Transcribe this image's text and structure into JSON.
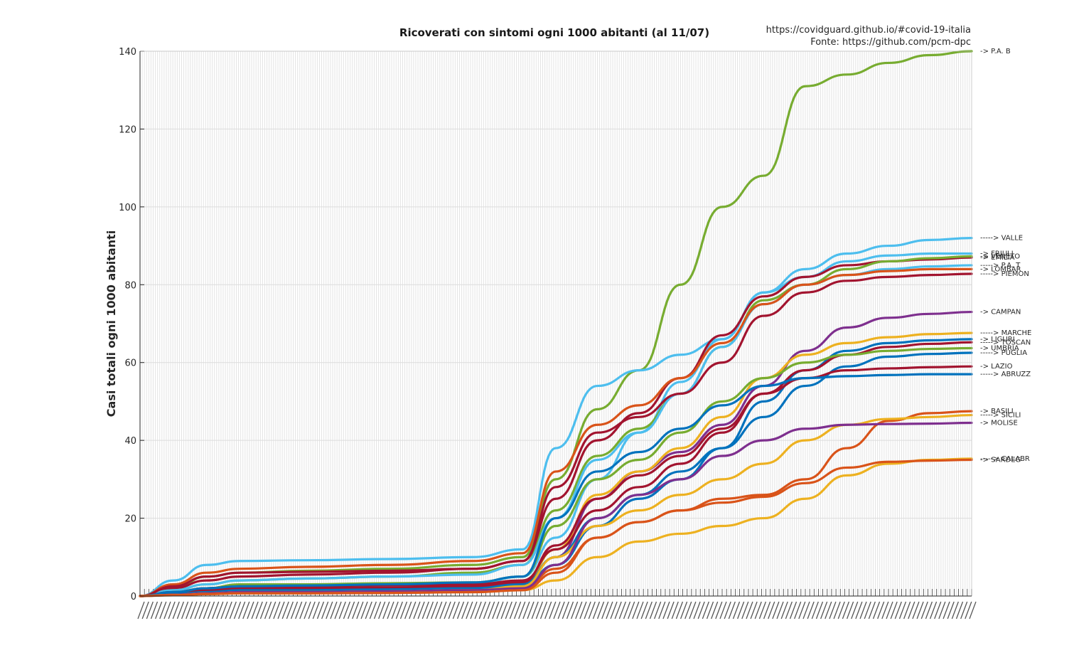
{
  "chart_data": {
    "type": "line",
    "title": "Ricoverati con sintomi ogni 1000 abitanti (al 11/07)",
    "source_line_1": "https://covidguard.github.io/#covid-19-italia",
    "source_line_2": "Fonte: https://github.com/pcm-dpc",
    "ylabel": "Casi totali ogni 1000 abitanti",
    "ylim": [
      0,
      140
    ],
    "yticks": [
      0,
      20,
      40,
      60,
      80,
      100,
      120,
      140
    ],
    "grid": "on",
    "x_tick_labels": "dense, illegible (daily dates)",
    "x": [
      0,
      0.04,
      0.08,
      0.12,
      0.2,
      0.3,
      0.4,
      0.46,
      0.5,
      0.55,
      0.6,
      0.65,
      0.7,
      0.75,
      0.8,
      0.85,
      0.9,
      0.95,
      1.0
    ],
    "series": [
      {
        "label": "-> P.A. B",
        "color": "#77ac30",
        "values": [
          0,
          2,
          5,
          6,
          6.5,
          7,
          8,
          10,
          30,
          48,
          58,
          80,
          100,
          108,
          131,
          134,
          137,
          139,
          140
        ]
      },
      {
        "label": "-----> VALLE",
        "color": "#4dbeee",
        "values": [
          0,
          4,
          8,
          9,
          9.2,
          9.5,
          10,
          12,
          38,
          54,
          58,
          62,
          66,
          78,
          84,
          88,
          90,
          91.5,
          92
        ]
      },
      {
        "label": "-> FRIULI",
        "color": "#4dbeee",
        "values": [
          0,
          1,
          2,
          2,
          2,
          2.5,
          3,
          5,
          15,
          30,
          42,
          55,
          66,
          78,
          82,
          86,
          87.5,
          88,
          88
        ]
      },
      {
        "label": "-> EMILIA",
        "color": "#a2142f",
        "values": [
          0,
          2,
          4,
          5,
          5.5,
          6,
          7,
          9,
          25,
          40,
          47,
          56,
          67,
          77,
          82,
          85,
          86,
          86.5,
          87
        ]
      },
      {
        "label": "-> VENETO",
        "color": "#77ac30",
        "values": [
          0,
          1.5,
          3,
          4,
          4.5,
          5,
          6,
          8,
          22,
          36,
          43,
          52,
          64,
          76,
          80,
          84,
          86,
          86.8,
          87.3
        ]
      },
      {
        "label": "-----> P.A. T",
        "color": "#4dbeee",
        "values": [
          0,
          1.5,
          3,
          4,
          4.5,
          5,
          5.5,
          8,
          20,
          35,
          42,
          52,
          64,
          75,
          80,
          82.5,
          84,
          84.7,
          85
        ]
      },
      {
        "label": "-> LOMBAR",
        "color": "#d95319",
        "values": [
          0,
          3,
          6,
          7,
          7.5,
          8,
          9,
          11,
          32,
          44,
          49,
          56,
          65,
          75,
          80,
          82.5,
          83.5,
          84,
          84
        ]
      },
      {
        "label": "-----> PIEMON",
        "color": "#a2142f",
        "values": [
          0,
          2.5,
          5,
          6,
          6.2,
          6.5,
          7,
          9,
          28,
          42,
          46,
          52,
          60,
          72,
          78,
          81,
          82,
          82.5,
          82.8
        ]
      },
      {
        "label": "-> CAMPAN",
        "color": "#7e2f8e",
        "values": [
          0,
          0.5,
          1,
          1.5,
          1.5,
          1.7,
          2,
          3,
          10,
          25,
          32,
          37,
          44,
          54,
          63,
          69,
          71.5,
          72.5,
          73
        ]
      },
      {
        "label": "-----> MARCHE",
        "color": "#edb120",
        "values": [
          0,
          0.5,
          1,
          1.5,
          1.5,
          1.7,
          2,
          3,
          12,
          26,
          32,
          38,
          46,
          56,
          62,
          65,
          66.5,
          67.3,
          67.6
        ]
      },
      {
        "label": "-> LIGURI",
        "color": "#0072bd",
        "values": [
          0,
          0.5,
          1,
          1.5,
          1.5,
          1.7,
          2,
          3,
          8,
          18,
          25,
          30,
          38,
          50,
          58,
          63,
          65,
          65.7,
          66
        ]
      },
      {
        "label": "-----> TOSCAN",
        "color": "#a2142f",
        "values": [
          0,
          0.7,
          1.5,
          2,
          2,
          2.2,
          2.5,
          3.5,
          13,
          25,
          31,
          36,
          43,
          52,
          58,
          62,
          64,
          64.8,
          65.2
        ]
      },
      {
        "label": "-> UMBRIA",
        "color": "#77ac30",
        "values": [
          0,
          1,
          2,
          3,
          3,
          3.3,
          3.5,
          5,
          18,
          30,
          35,
          42,
          50,
          56,
          60,
          62,
          63,
          63.5,
          63.7
        ]
      },
      {
        "label": "-----> PUGLIA",
        "color": "#0072bd",
        "values": [
          0,
          0.5,
          1,
          1.5,
          1.5,
          1.7,
          2,
          3,
          10,
          20,
          26,
          32,
          38,
          46,
          54,
          59,
          61.5,
          62.2,
          62.5
        ]
      },
      {
        "label": "-> LAZIO",
        "color": "#a2142f",
        "values": [
          0,
          1,
          2,
          2.5,
          2.5,
          2.8,
          3,
          4,
          12,
          22,
          28,
          34,
          42,
          52,
          56,
          58,
          58.5,
          58.8,
          59
        ]
      },
      {
        "label": "-----> ABRUZZ",
        "color": "#0072bd",
        "values": [
          0,
          1,
          2,
          2.5,
          2.7,
          3,
          3.5,
          5,
          20,
          32,
          37,
          43,
          49,
          54,
          56,
          56.5,
          56.8,
          57,
          57
        ]
      },
      {
        "label": "-> BASILI",
        "color": "#d95319",
        "values": [
          0,
          0.3,
          0.7,
          1,
          1,
          1.2,
          1.5,
          2,
          7,
          15,
          19,
          22,
          25,
          26,
          30,
          38,
          45,
          47,
          47.5
        ]
      },
      {
        "label": "-----> SICILI",
        "color": "#edb120",
        "values": [
          0,
          0.3,
          0.7,
          1,
          1,
          1.2,
          1.5,
          2.5,
          10,
          18,
          22,
          26,
          30,
          34,
          40,
          44,
          45.5,
          46,
          46.5
        ]
      },
      {
        "label": "-> MOLISE",
        "color": "#7e2f8e",
        "values": [
          0,
          0.3,
          0.7,
          1,
          1,
          1.2,
          1.5,
          2,
          8,
          20,
          26,
          30,
          36,
          40,
          43,
          44,
          44.2,
          44.3,
          44.5
        ]
      },
      {
        "label": "-----> CALABR",
        "color": "#edb120",
        "values": [
          0,
          0.2,
          0.5,
          0.7,
          0.7,
          0.8,
          1,
          1.5,
          4,
          10,
          14,
          16,
          18,
          20,
          25,
          31,
          34,
          35,
          35.3
        ]
      },
      {
        "label": "-> SARDEG",
        "color": "#d95319",
        "values": [
          0,
          0.2,
          0.5,
          0.7,
          0.7,
          0.8,
          1,
          1.5,
          6,
          15,
          19,
          22,
          24,
          25.5,
          29,
          33,
          34.5,
          34.8,
          35
        ]
      }
    ]
  }
}
